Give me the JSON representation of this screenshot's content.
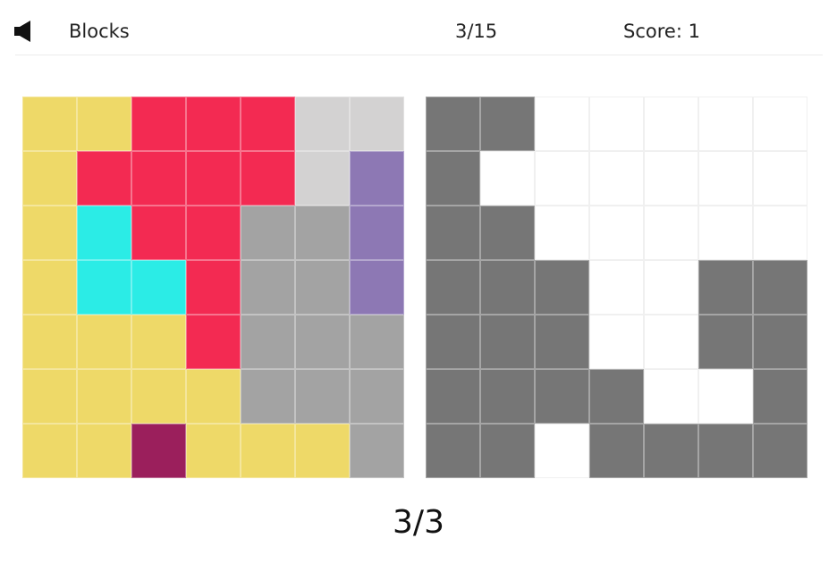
{
  "header": {
    "sound_icon": "speaker-icon",
    "title": "Blocks",
    "level": "3/15",
    "score": "Score: 1"
  },
  "colors": {
    "Y": "#eed968",
    "R": "#f32a52",
    "L": "#d3d2d2",
    "P": "#8d78b4",
    "C": "#2bece6",
    "G": "#a3a3a3",
    "M": "#9b1f5c",
    "D": "#767676",
    "W": "#ffffff"
  },
  "puzzle_board": {
    "rows": [
      [
        "Y",
        "Y",
        "R",
        "R",
        "R",
        "L",
        "L"
      ],
      [
        "Y",
        "R",
        "R",
        "R",
        "R",
        "L",
        "P"
      ],
      [
        "Y",
        "C",
        "R",
        "R",
        "G",
        "G",
        "P"
      ],
      [
        "Y",
        "C",
        "C",
        "R",
        "G",
        "G",
        "P"
      ],
      [
        "Y",
        "Y",
        "Y",
        "R",
        "G",
        "G",
        "G"
      ],
      [
        "Y",
        "Y",
        "Y",
        "Y",
        "G",
        "G",
        "G"
      ],
      [
        "Y",
        "Y",
        "M",
        "Y",
        "Y",
        "Y",
        "G"
      ]
    ]
  },
  "target_board": {
    "rows": [
      [
        "D",
        "D",
        "W",
        "W",
        "W",
        "W",
        "W"
      ],
      [
        "D",
        "W",
        "W",
        "W",
        "W",
        "W",
        "W"
      ],
      [
        "D",
        "D",
        "W",
        "W",
        "W",
        "W",
        "W"
      ],
      [
        "D",
        "D",
        "D",
        "W",
        "W",
        "D",
        "D"
      ],
      [
        "D",
        "D",
        "D",
        "W",
        "W",
        "D",
        "D"
      ],
      [
        "D",
        "D",
        "D",
        "D",
        "W",
        "W",
        "D"
      ],
      [
        "D",
        "D",
        "W",
        "D",
        "D",
        "D",
        "D"
      ]
    ]
  },
  "progress": "3/3"
}
